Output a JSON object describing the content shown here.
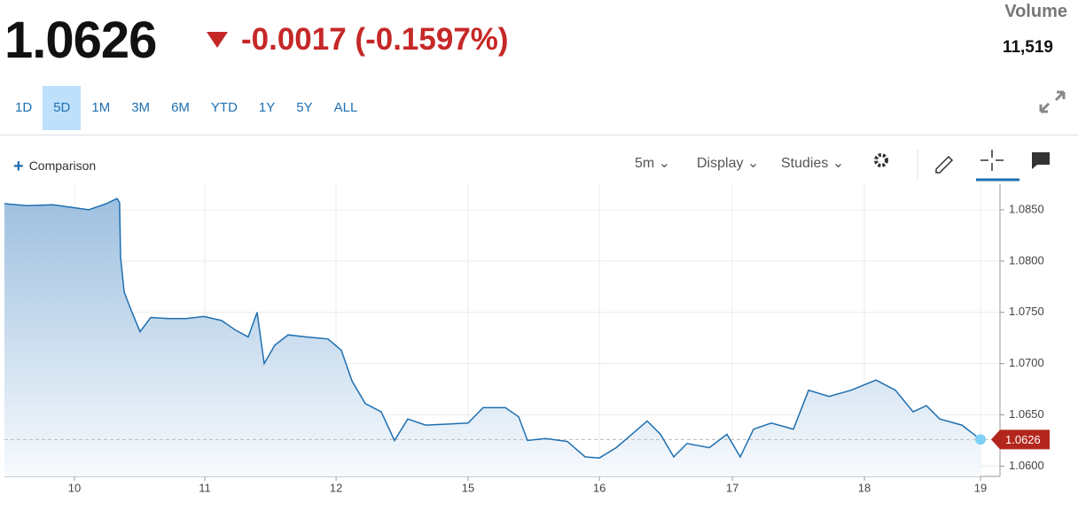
{
  "header": {
    "price": "1.0626",
    "change": "-0.0017 (-0.1597%)"
  },
  "volume": {
    "label": "Volume",
    "value": "11,519"
  },
  "ranges": [
    "1D",
    "5D",
    "1M",
    "3M",
    "6M",
    "YTD",
    "1Y",
    "5Y",
    "ALL"
  ],
  "toolbar": {
    "comparison": "Comparison",
    "interval": "5m",
    "display": "Display",
    "studies": "Studies"
  },
  "chart_data": {
    "type": "area",
    "color": "#1e6fb0",
    "x": [
      -0.532,
      -0.364,
      -0.162,
      0,
      0.108,
      0.242,
      0.323,
      0.343,
      0.35,
      0.377,
      0.431,
      0.498,
      0.579,
      0.714,
      0.848,
      0.983,
      1.118,
      1.219,
      1.32,
      1.387,
      1.441,
      1.522,
      1.623,
      1.758,
      1.926,
      2.027,
      2.108,
      2.209,
      2.33,
      2.431,
      2.532,
      2.667,
      2.99,
      3.104,
      3.273,
      3.374,
      3.441,
      3.576,
      3.744,
      3.879,
      3.987,
      4.114,
      4.215,
      4.35,
      4.451,
      4.552,
      4.653,
      4.822,
      4.956,
      5.057,
      5.158,
      5.293,
      5.461,
      5.576,
      5.731,
      5.899,
      6.088,
      6.236,
      6.37,
      6.471,
      6.572,
      6.741,
      6.882
    ],
    "values": [
      1.0856,
      1.0854,
      1.0855,
      1.0852,
      1.085,
      1.0856,
      1.0861,
      1.0857,
      1.0804,
      1.077,
      1.0752,
      1.0731,
      1.0745,
      1.0744,
      1.0744,
      1.0746,
      1.0742,
      1.0733,
      1.0726,
      1.075,
      1.07,
      1.0718,
      1.0728,
      1.0726,
      1.0724,
      1.0713,
      1.0683,
      1.0661,
      1.0653,
      1.0625,
      1.0646,
      1.064,
      1.0642,
      1.0657,
      1.0657,
      1.0648,
      1.0625,
      1.0627,
      1.0624,
      1.0609,
      1.0608,
      1.0618,
      1.0629,
      1.0644,
      1.0631,
      1.0609,
      1.0622,
      1.0618,
      1.0631,
      1.0609,
      1.0636,
      1.0642,
      1.0636,
      1.0674,
      1.0668,
      1.0674,
      1.0684,
      1.0674,
      1.0653,
      1.0659,
      1.0646,
      1.064,
      1.0626
    ],
    "last_label": "1.0626",
    "xlim": [
      -0.532,
      7.03
    ],
    "xticks": [
      {
        "value": 0,
        "label": "10"
      },
      {
        "value": 0.99,
        "label": "11"
      },
      {
        "value": 1.987,
        "label": "12"
      },
      {
        "value": 2.99,
        "label": "15"
      },
      {
        "value": 3.987,
        "label": "16"
      },
      {
        "value": 4.997,
        "label": "17"
      },
      {
        "value": 6.0,
        "label": "18"
      },
      {
        "value": 6.882,
        "label": "19"
      }
    ],
    "ylim": [
      1.059,
      1.0875
    ],
    "yticks": [
      {
        "value": 1.06,
        "label": "1.0600"
      },
      {
        "value": 1.065,
        "label": "1.0650"
      },
      {
        "value": 1.07,
        "label": "1.0700"
      },
      {
        "value": 1.075,
        "label": "1.0750"
      },
      {
        "value": 1.08,
        "label": "1.0800"
      },
      {
        "value": 1.085,
        "label": "1.0850"
      }
    ],
    "grid": true
  }
}
